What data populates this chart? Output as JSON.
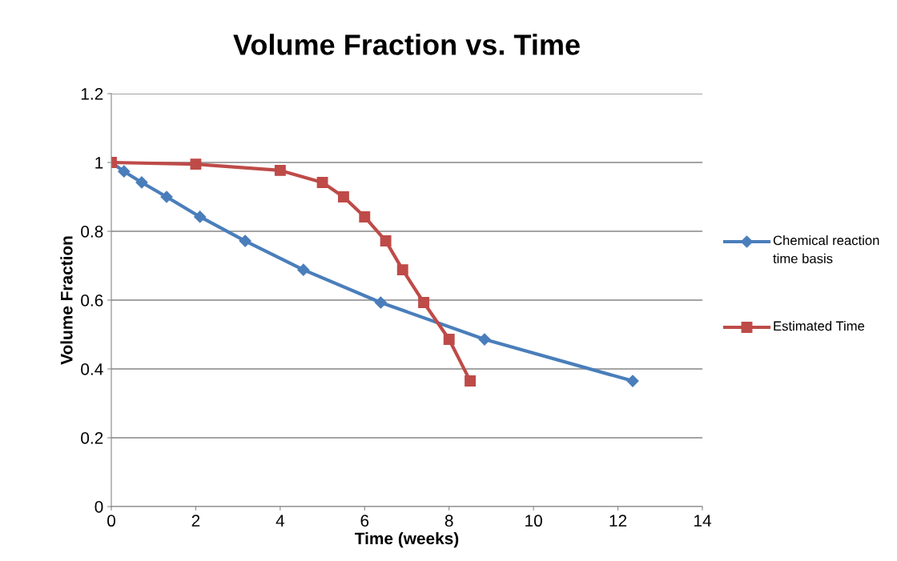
{
  "chart_data": {
    "type": "line",
    "title": "Volume Fraction vs. Time",
    "xlabel": "Time (weeks)",
    "ylabel": "Volume Fraction",
    "series": [
      {
        "name": "Chemical reaction time basis",
        "color": "#4a7ebb",
        "marker": "diamond",
        "x": [
          0,
          0.3,
          0.72,
          1.31,
          2.1,
          3.17,
          4.55,
          6.38,
          8.84,
          12.35
        ],
        "values": [
          1.0,
          0.974,
          0.942,
          0.9,
          0.842,
          0.772,
          0.688,
          0.593,
          0.486,
          0.365
        ]
      },
      {
        "name": "Estimated Time",
        "color": "#be4b48",
        "marker": "square",
        "x": [
          0,
          2,
          4,
          5,
          5.5,
          6,
          6.5,
          6.9,
          7.4,
          8,
          8.5
        ],
        "values": [
          1.0,
          0.995,
          0.977,
          0.942,
          0.9,
          0.842,
          0.772,
          0.688,
          0.593,
          0.486,
          0.365
        ]
      }
    ],
    "xlim": [
      0,
      14
    ],
    "xticks": [
      0,
      2,
      4,
      6,
      8,
      10,
      12,
      14
    ],
    "ylim": [
      0,
      1.2
    ],
    "yticks": [
      0,
      0.2,
      0.4,
      0.6,
      0.8,
      1,
      1.2
    ],
    "grid": "y",
    "legend": "right"
  }
}
